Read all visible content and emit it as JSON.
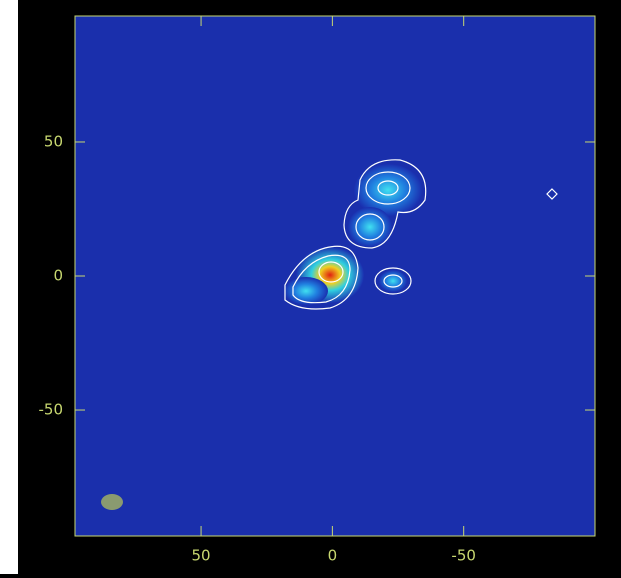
{
  "chart_data": {
    "type": "image",
    "xlim": [
      98,
      -100
    ],
    "ylim": [
      -97,
      97
    ],
    "xticks": [
      50,
      0,
      -50
    ],
    "yticks": [
      50,
      0,
      -50
    ]
  }
}
